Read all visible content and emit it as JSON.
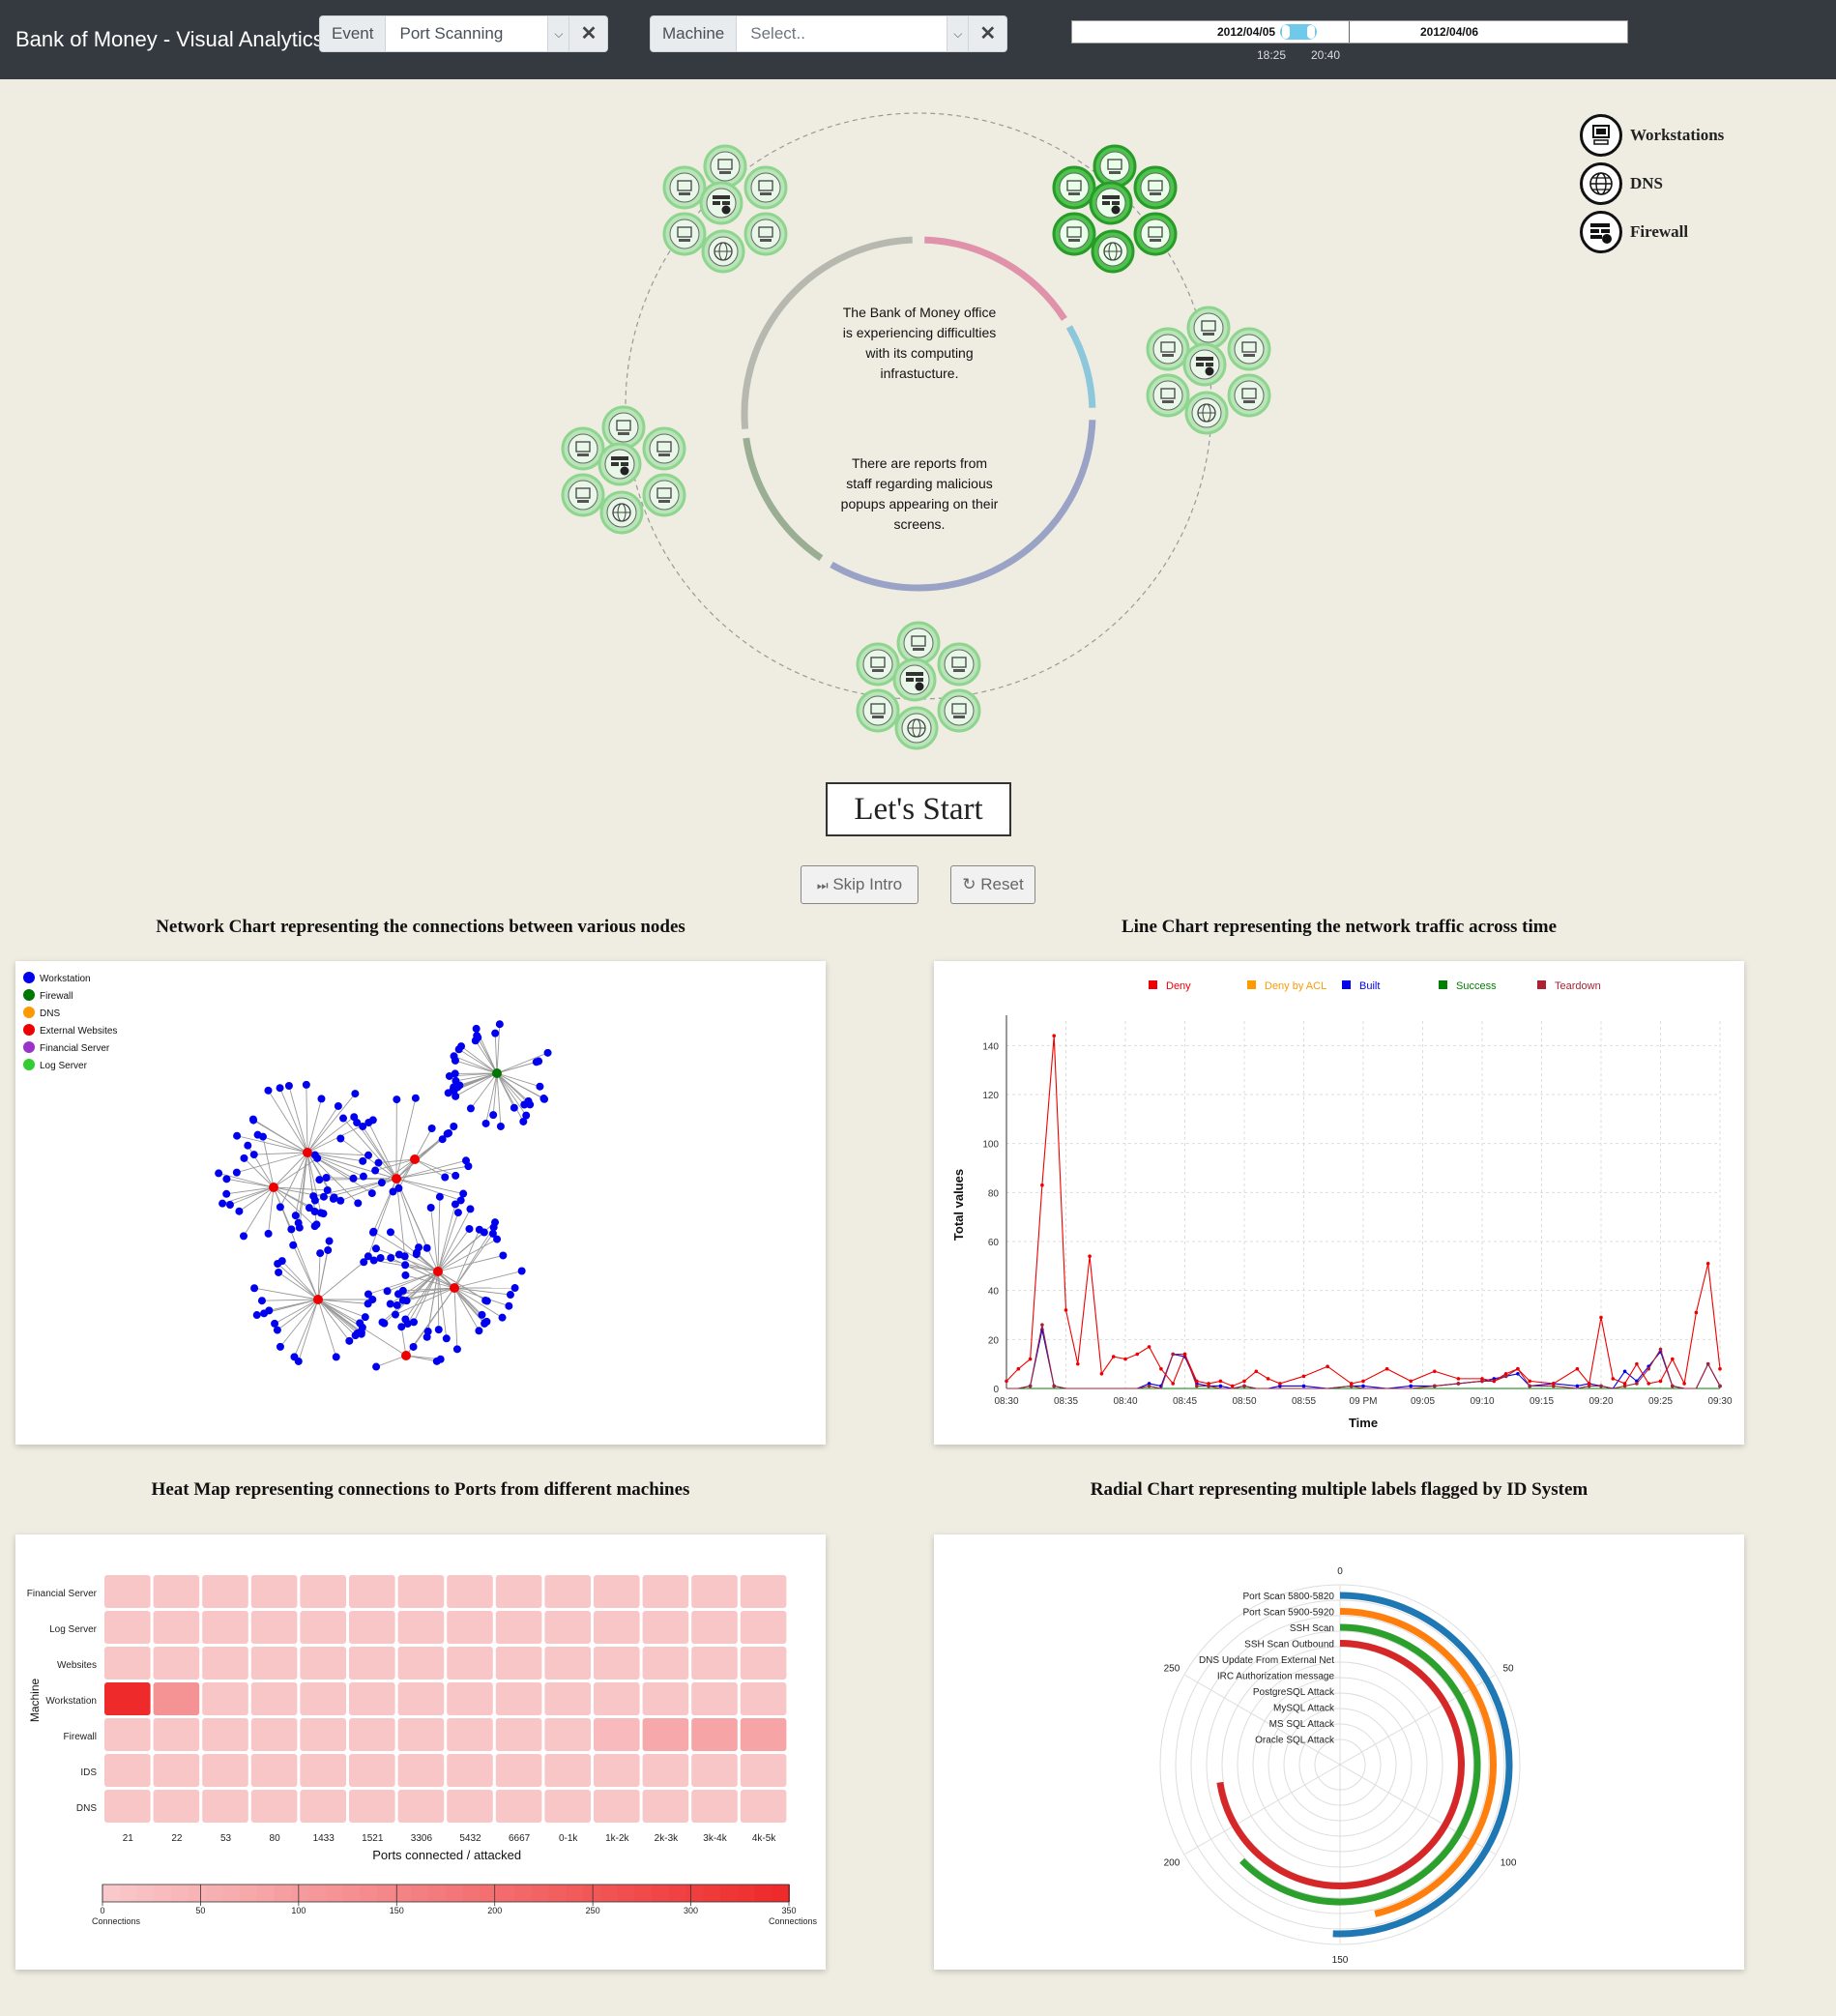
{
  "header": {
    "title": "Bank of Money - Visual Analytics",
    "event_label": "Event",
    "event_value": "Port Scanning",
    "machine_label": "Machine",
    "machine_placeholder": "Select..",
    "clear_symbol": "✕",
    "timeline": {
      "date_left": "2012/04/05",
      "date_right": "2012/04/06",
      "time_start": "18:25",
      "time_end": "20:40"
    }
  },
  "colors": {
    "topbar": "#343a40",
    "background": "#efede2",
    "ring_segments": [
      "#b7b9b1",
      "#df92aa",
      "#8cc7dc",
      "#9aa3c6",
      "#9aae93"
    ],
    "node_fill": "#b8e6b8",
    "node_fill_active": "#4cc44c"
  },
  "legend": [
    {
      "label": "Workstations",
      "icon": "workstation-icon"
    },
    {
      "label": "DNS",
      "icon": "globe-icon"
    },
    {
      "label": "Firewall",
      "icon": "firewall-icon"
    }
  ],
  "intro": {
    "text_1": "The Bank of Money office is experiencing difficulties with its computing infrastucture.",
    "text_2": "There are reports from staff regarding malicious popups appearing on their screens.",
    "start_label": "Let's Start",
    "skip_label": "Skip Intro",
    "reset_label": "Reset",
    "skip_icon": "⏭",
    "reset_icon": "↻"
  },
  "network_chart": {
    "title": "Network Chart representing the connections between various nodes",
    "legend": [
      {
        "label": "Workstation",
        "color": "#0000ee"
      },
      {
        "label": "Firewall",
        "color": "#007700"
      },
      {
        "label": "DNS",
        "color": "#ff9900"
      },
      {
        "label": "External Websites",
        "color": "#ee0000"
      },
      {
        "label": "Financial Server",
        "color": "#9933cc"
      },
      {
        "label": "Log Server",
        "color": "#33cc33"
      }
    ]
  },
  "line_chart": {
    "title": "Line Chart representing the network traffic across time",
    "xlabel": "Time",
    "ylabel": "Total values"
  },
  "heat_map": {
    "title": "Heat Map representing connections to Ports from different machines",
    "xlabel": "Ports connected / attacked",
    "ylabel": "Machine",
    "scale_left": "Connections",
    "scale_right": "Connections"
  },
  "radial_chart": {
    "title": "Radial Chart representing multiple labels flagged by ID System"
  },
  "chart_data": [
    {
      "type": "line",
      "x": [
        "08:30",
        "08:31",
        "08:32",
        "08:33",
        "08:34",
        "08:35",
        "08:36",
        "08:37",
        "08:38",
        "08:39",
        "08:40",
        "08:41",
        "08:42",
        "08:43",
        "08:44",
        "08:45",
        "08:46",
        "08:47",
        "08:48",
        "08:49",
        "08:50",
        "08:51",
        "08:52",
        "08:53",
        "08:55",
        "08:57",
        "08:59",
        "09:00",
        "09:02",
        "09:04",
        "09:06",
        "09:08",
        "09:10",
        "09:11",
        "09:12",
        "09:13",
        "09:14",
        "09:16",
        "09:18",
        "09:19",
        "09:20",
        "09:21",
        "09:22",
        "09:23",
        "09:24",
        "09:25",
        "09:26",
        "09:27",
        "09:28",
        "09:29",
        "09:30"
      ],
      "x_ticks": [
        "08:30",
        "08:35",
        "08:40",
        "08:45",
        "08:50",
        "08:55",
        "09 PM",
        "09:05",
        "09:10",
        "09:15",
        "09:20",
        "09:25",
        "09:30"
      ],
      "series": [
        {
          "name": "Deny",
          "color": "#ee0000",
          "values": [
            3,
            8,
            12,
            83,
            144,
            32,
            10,
            54,
            6,
            13,
            12,
            14,
            17,
            8,
            2,
            14,
            3,
            2,
            3,
            1,
            3,
            7,
            4,
            2,
            5,
            9,
            2,
            3,
            8,
            3,
            7,
            4,
            4,
            3,
            6,
            8,
            3,
            2,
            8,
            2,
            29,
            4,
            2,
            10,
            2,
            3,
            12,
            2,
            31,
            51,
            8
          ]
        },
        {
          "name": "Deny by ACL",
          "color": "#ff9900",
          "values": [
            0,
            0,
            0,
            0,
            0,
            0,
            0,
            0,
            0,
            0,
            0,
            0,
            0,
            0,
            0,
            0,
            0,
            0,
            0,
            0,
            0,
            0,
            0,
            0,
            0,
            0,
            0,
            0,
            0,
            0,
            0,
            0,
            0,
            0,
            0,
            0,
            0,
            0,
            0,
            0,
            0,
            0,
            0,
            0,
            0,
            0,
            0,
            0,
            0,
            0,
            0
          ]
        },
        {
          "name": "Built",
          "color": "#0000ee",
          "values": [
            0,
            0,
            1,
            24,
            1,
            0,
            0,
            0,
            0,
            0,
            0,
            0,
            2,
            1,
            14,
            13,
            2,
            1,
            1,
            0,
            1,
            0,
            0,
            1,
            1,
            0,
            1,
            1,
            0,
            1,
            1,
            2,
            3,
            4,
            5,
            6,
            1,
            2,
            1,
            2,
            1,
            0,
            7,
            3,
            9,
            15,
            1,
            0,
            0,
            10,
            1
          ]
        },
        {
          "name": "Success",
          "color": "#008000",
          "values": [
            0,
            0,
            0,
            0,
            0,
            0,
            0,
            0,
            0,
            0,
            0,
            0,
            0,
            0,
            0,
            0,
            0,
            0,
            0,
            0,
            0,
            0,
            0,
            0,
            0,
            0,
            0,
            0,
            0,
            0,
            0,
            0,
            0,
            0,
            0,
            0,
            0,
            0,
            0,
            0,
            0,
            0,
            0,
            0,
            0,
            0,
            0,
            0,
            0,
            0,
            0
          ]
        },
        {
          "name": "Teardown",
          "color": "#aa2233",
          "values": [
            0,
            0,
            1,
            26,
            1,
            0,
            0,
            0,
            0,
            0,
            0,
            0,
            1,
            0,
            14,
            14,
            1,
            1,
            0,
            0,
            1,
            0,
            0,
            0,
            0,
            0,
            1,
            0,
            0,
            0,
            1,
            2,
            3,
            3,
            5,
            8,
            1,
            1,
            0,
            1,
            1,
            0,
            1,
            2,
            8,
            16,
            1,
            0,
            0,
            10,
            1
          ]
        }
      ],
      "ylim": [
        0,
        150
      ],
      "y_ticks": [
        0,
        20,
        40,
        60,
        80,
        100,
        120,
        140
      ],
      "xlabel": "Time",
      "ylabel": "Total values",
      "legend_position": "top",
      "grid": true
    },
    {
      "type": "heatmap",
      "rows": [
        "Financial Server",
        "Log Server",
        "Websites",
        "Workstation",
        "Firewall",
        "IDS",
        "DNS"
      ],
      "columns": [
        "21",
        "22",
        "53",
        "80",
        "1433",
        "1521",
        "3306",
        "5432",
        "6667",
        "0-1k",
        "1k-2k",
        "2k-3k",
        "3k-4k",
        "4k-5k"
      ],
      "values": [
        [
          5,
          5,
          5,
          5,
          5,
          5,
          5,
          5,
          5,
          5,
          5,
          5,
          5,
          5
        ],
        [
          5,
          5,
          5,
          5,
          5,
          5,
          5,
          5,
          5,
          5,
          5,
          5,
          5,
          5
        ],
        [
          5,
          5,
          5,
          5,
          5,
          5,
          5,
          5,
          5,
          5,
          5,
          5,
          5,
          5
        ],
        [
          350,
          120,
          5,
          5,
          5,
          5,
          5,
          5,
          5,
          5,
          5,
          5,
          5,
          5
        ],
        [
          5,
          5,
          5,
          5,
          5,
          5,
          5,
          5,
          5,
          5,
          30,
          70,
          80,
          80
        ],
        [
          5,
          5,
          5,
          5,
          5,
          5,
          5,
          5,
          5,
          5,
          5,
          5,
          5,
          5
        ],
        [
          5,
          5,
          5,
          5,
          5,
          5,
          5,
          5,
          5,
          5,
          5,
          5,
          5,
          5
        ]
      ],
      "scale_ticks": [
        0,
        50,
        100,
        150,
        200,
        250,
        300,
        350
      ],
      "xlabel": "Ports connected / attacked",
      "ylabel": "Machine"
    },
    {
      "type": "radial_bar",
      "labels": [
        "Port Scan 5800-5820",
        "Port Scan 5900-5920",
        "SSH Scan",
        "SSH Scan Outbound",
        "DNS Update From External Net",
        "IRC Authorization message",
        "PostgreSQL Attack",
        "MySQL Attack",
        "MS SQL Attack",
        "Oracle SQL Attack"
      ],
      "values": [
        152,
        139,
        188,
        218,
        0,
        0,
        0,
        0,
        0,
        0
      ],
      "colors": [
        "#1f77b4",
        "#ff7f0e",
        "#2ca02c",
        "#d62728",
        "#d62728",
        "#d62728",
        "#d62728",
        "#d62728",
        "#d62728",
        "#d62728"
      ],
      "axis_max": 300,
      "axis_ticks": [
        0,
        50,
        100,
        150,
        200,
        250
      ]
    }
  ]
}
